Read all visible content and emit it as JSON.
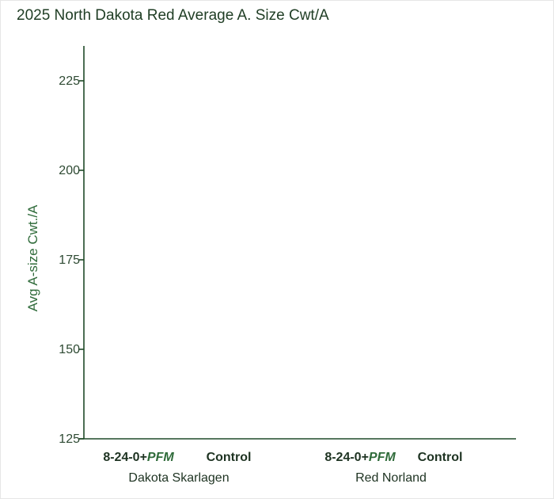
{
  "chart_data": {
    "type": "bar",
    "title": "2025 North Dakota Red Average A. Size Cwt/A",
    "ylabel": "Avg A-size Cwt./A",
    "xlabel": "",
    "ylim": [
      125,
      235
    ],
    "yticks": [
      125,
      150,
      175,
      200,
      225
    ],
    "groups": [
      {
        "label": "Dakota Skarlagen",
        "categories": [
          {
            "prefix": "8-24-0+",
            "suffix": "PFM"
          },
          {
            "prefix": "Control",
            "suffix": ""
          }
        ]
      },
      {
        "label": "Red Norland",
        "categories": [
          {
            "prefix": "8-24-0+",
            "suffix": "PFM"
          },
          {
            "prefix": "Control",
            "suffix": ""
          }
        ]
      }
    ],
    "values": [],
    "colors": {
      "axis": "#1f4a28",
      "text": "#1e3322",
      "accent": "#2f6b3a"
    }
  }
}
